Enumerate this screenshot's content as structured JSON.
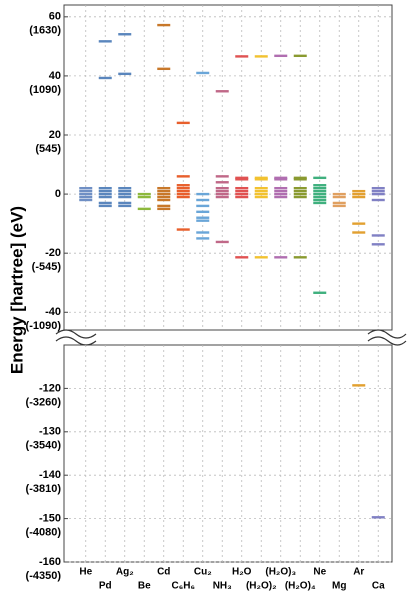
{
  "chart_data": {
    "type": "levels",
    "y_label": "Energy [hartree] (eV)",
    "ylim": [
      -46,
      64
    ],
    "yticks": [
      60,
      40,
      20,
      0,
      -20,
      -40
    ],
    "ytick_ev_labels": [
      "(1630)",
      "(1090)",
      "(545)",
      "",
      "(-545)",
      "(-1090)"
    ],
    "ylim_lower": [
      -160,
      -110
    ],
    "yticks_lower": [
      -120,
      -130,
      -140,
      -150,
      -160
    ],
    "ytick_ev_labels_lower": [
      "(-3260)",
      "(-3540)",
      "(-3810)",
      "(-4080)",
      "(-4350)"
    ],
    "grid": true,
    "series": [
      {
        "name": "He",
        "color": "#6f8fc4",
        "values": [
          2,
          1,
          0,
          -1,
          -2
        ]
      },
      {
        "name": "Pd",
        "color": "#5a86bd",
        "values": [
          51.7,
          39.3,
          2,
          1,
          0,
          -1,
          -3,
          -4
        ]
      },
      {
        "name": "Ag₂",
        "color": "#5a86bd",
        "values": [
          54.1,
          40.7,
          2,
          1,
          0,
          -1,
          -3,
          -4
        ]
      },
      {
        "name": "Be",
        "color": "#8db83c",
        "values": [
          0,
          -1,
          -5
        ]
      },
      {
        "name": "Cd",
        "color": "#c8782a",
        "values": [
          57.2,
          42.4,
          2,
          1,
          0,
          -1,
          -2,
          -4,
          -5
        ]
      },
      {
        "name": "C₆H₆",
        "color": "#e85f2c",
        "values": [
          24.1,
          6,
          3,
          2,
          1,
          0,
          -1,
          -12
        ]
      },
      {
        "name": "Cu₂",
        "color": "#6aa6d8",
        "values": [
          41,
          0,
          -2,
          -4,
          -6,
          -8,
          -9,
          -13,
          -15
        ]
      },
      {
        "name": "NH₃",
        "color": "#c06888",
        "values": [
          34.8,
          6,
          4,
          2,
          1,
          0,
          -1,
          -16.2
        ]
      },
      {
        "name": "H₂O",
        "color": "#e05252",
        "values": [
          46.6,
          5.5,
          5,
          2,
          1,
          0,
          -1,
          -21.4
        ]
      },
      {
        "name": "(H₂O)₂",
        "color": "#f2c230",
        "values": [
          46.6,
          5.5,
          5,
          2,
          1,
          0,
          -1,
          -21.4
        ]
      },
      {
        "name": "(H₂O)₃",
        "color": "#b06eb0",
        "values": [
          46.8,
          5.5,
          5,
          2,
          1,
          0,
          -1,
          -21.4
        ]
      },
      {
        "name": "(H₂O)₄",
        "color": "#8a9a30",
        "values": [
          46.8,
          5.5,
          5,
          2,
          1,
          0,
          -1,
          -21.4
        ]
      },
      {
        "name": "Ne",
        "color": "#3fb07e",
        "values": [
          5.5,
          3,
          2,
          1,
          0,
          -1,
          -2,
          -3,
          -33.4
        ]
      },
      {
        "name": "Mg",
        "color": "#e0a060",
        "values": [
          0,
          -1,
          -3,
          -4
        ]
      },
      {
        "name": "Ar",
        "color": "#e2a030",
        "values": [
          1,
          0,
          -1,
          -10,
          -13,
          -119.3
        ]
      },
      {
        "name": "Ca",
        "color": "#8080c4",
        "values": [
          2,
          1,
          0,
          -2,
          -14,
          -17,
          -149.7
        ]
      }
    ]
  }
}
